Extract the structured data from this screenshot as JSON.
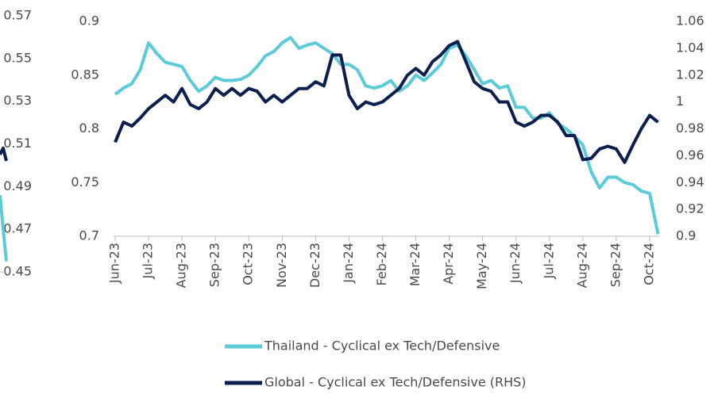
{
  "chart_data": [
    {
      "type": "line",
      "ylim": [
        0.45,
        0.57
      ],
      "yticks": [
        0.57,
        0.55,
        0.53,
        0.51,
        0.49,
        0.47,
        0.45
      ],
      "series": [
        {
          "color": "#0b1f4f",
          "values": [
            0.505,
            0.508,
            0.502
          ]
        },
        {
          "color": "#5ccbd9",
          "values": [
            0.486,
            0.47,
            0.455
          ]
        }
      ]
    },
    {
      "type": "line",
      "xlim": [
        0,
        16.3
      ],
      "xticks": [
        {
          "value": 0,
          "label": "Jun-23"
        },
        {
          "value": 1,
          "label": "Jul-23"
        },
        {
          "value": 2,
          "label": "Aug-23"
        },
        {
          "value": 3,
          "label": "Sep-23"
        },
        {
          "value": 4,
          "label": "Oct-23"
        },
        {
          "value": 5,
          "label": "Nov-23"
        },
        {
          "value": 6,
          "label": "Dec-23"
        },
        {
          "value": 7,
          "label": "Jan-24"
        },
        {
          "value": 8,
          "label": "Feb-24"
        },
        {
          "value": 9,
          "label": "Mar-24"
        },
        {
          "value": 10,
          "label": "Apr-24"
        },
        {
          "value": 11,
          "label": "May-24"
        },
        {
          "value": 12,
          "label": "Jun-24"
        },
        {
          "value": 13,
          "label": "Jul-24"
        },
        {
          "value": 14,
          "label": "Aug-24"
        },
        {
          "value": 15,
          "label": "Sep-24"
        },
        {
          "value": 16,
          "label": "Oct-24"
        }
      ],
      "ylim": [
        0.7,
        0.9
      ],
      "yticks": [
        0.9,
        0.85,
        0.8,
        0.75,
        0.7
      ],
      "y2lim": [
        0.9,
        1.06
      ],
      "y2ticks": [
        1.06,
        1.04,
        1.02,
        1,
        0.98,
        0.96,
        0.94,
        0.92,
        0.9
      ],
      "x": [
        0,
        0.25,
        0.5,
        0.75,
        1,
        1.25,
        1.5,
        1.75,
        2,
        2.25,
        2.5,
        2.75,
        3,
        3.25,
        3.5,
        3.75,
        4,
        4.25,
        4.5,
        4.75,
        5,
        5.25,
        5.5,
        5.75,
        6,
        6.25,
        6.5,
        6.75,
        7,
        7.25,
        7.5,
        7.75,
        8,
        8.25,
        8.5,
        8.75,
        9,
        9.25,
        9.5,
        9.75,
        10,
        10.25,
        10.5,
        10.75,
        11,
        11.25,
        11.5,
        11.75,
        12,
        12.25,
        12.5,
        12.75,
        13,
        13.25,
        13.5,
        13.75,
        14,
        14.25,
        14.5,
        14.75,
        15,
        15.25,
        15.5,
        15.75,
        16,
        16.25
      ],
      "series": [
        {
          "name": "Thailand - Cyclical ex Tech/Defensive",
          "color": "#5ccbd9",
          "values": [
            0.832,
            0.838,
            0.842,
            0.855,
            0.88,
            0.87,
            0.862,
            0.86,
            0.858,
            0.845,
            0.835,
            0.84,
            0.848,
            0.845,
            0.845,
            0.846,
            0.85,
            0.858,
            0.868,
            0.872,
            0.88,
            0.885,
            0.875,
            0.878,
            0.88,
            0.875,
            0.87,
            0.86,
            0.86,
            0.855,
            0.84,
            0.838,
            0.84,
            0.845,
            0.835,
            0.84,
            0.85,
            0.845,
            0.852,
            0.86,
            0.875,
            0.878,
            0.868,
            0.855,
            0.842,
            0.845,
            0.838,
            0.84,
            0.82,
            0.82,
            0.81,
            0.81,
            0.815,
            0.805,
            0.8,
            0.793,
            0.785,
            0.76,
            0.745,
            0.755,
            0.755,
            0.75,
            0.748,
            0.742,
            0.74,
            0.702
          ]
        },
        {
          "name": "Global - Cyclical ex Tech/Defensive (RHS)",
          "color": "#0b1f4f",
          "axis": "y2",
          "values": [
            0.97,
            0.985,
            0.982,
            0.988,
            0.995,
            1.0,
            1.005,
            1.0,
            1.01,
            0.998,
            0.995,
            1.0,
            1.01,
            1.005,
            1.01,
            1.005,
            1.01,
            1.008,
            1.0,
            1.005,
            1.0,
            1.005,
            1.01,
            1.01,
            1.015,
            1.012,
            1.035,
            1.035,
            1.005,
            0.995,
            1.0,
            0.998,
            1.0,
            1.005,
            1.01,
            1.02,
            1.025,
            1.02,
            1.03,
            1.035,
            1.042,
            1.045,
            1.03,
            1.015,
            1.01,
            1.008,
            1.0,
            1.0,
            0.985,
            0.982,
            0.985,
            0.99,
            0.99,
            0.985,
            0.975,
            0.975,
            0.957,
            0.958,
            0.965,
            0.967,
            0.965,
            0.955,
            0.968,
            0.98,
            0.99,
            0.985
          ]
        }
      ]
    }
  ]
}
